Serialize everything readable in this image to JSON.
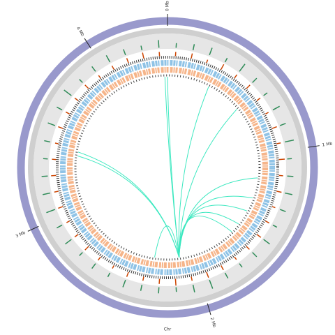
{
  "chart_data": {
    "type": "circos",
    "xlabel": "Chr",
    "xlim": [
      0,
      4.4
    ],
    "xticks": [
      {
        "value": 0,
        "label": "0 Mb"
      },
      {
        "value": 1,
        "label": "1 Mb"
      },
      {
        "value": 2,
        "label": "2 Mb"
      },
      {
        "value": 3,
        "label": "3 Mb"
      },
      {
        "value": 4,
        "label": "4 Mb"
      }
    ],
    "ylim": [
      0,
      10
    ],
    "series": [
      {
        "color": "#2e8b57",
        "values": [
          3,
          4,
          5,
          3,
          6,
          4,
          3,
          5,
          4,
          6,
          3,
          4,
          5,
          4,
          3,
          5,
          4,
          3,
          4,
          6,
          5,
          3,
          4,
          4,
          5,
          3,
          4,
          3,
          5,
          4,
          6,
          5,
          4,
          3,
          4,
          5,
          4,
          6,
          3,
          4,
          5,
          4,
          3,
          5
        ]
      },
      {
        "color": "#cc4400",
        "values": [
          5,
          6,
          4,
          7,
          5,
          6,
          5,
          4,
          6,
          5,
          7,
          5,
          6,
          4,
          5,
          6,
          5,
          4,
          6,
          7,
          5,
          8,
          6,
          5,
          6,
          4,
          5,
          6,
          5,
          4,
          6,
          5,
          6,
          5,
          4,
          6,
          5,
          5,
          6,
          4,
          5,
          6,
          7,
          5
        ]
      }
    ],
    "links": {
      "color": "#3de8c0",
      "values": [
        [
          2.11,
          4.38
        ],
        [
          2.11,
          4.4
        ],
        [
          2.11,
          0.33
        ],
        [
          2.11,
          0.61
        ],
        [
          2.11,
          1.18
        ],
        [
          2.11,
          1.34
        ],
        [
          2.11,
          1.57
        ],
        [
          2.11,
          1.65
        ],
        [
          2.11,
          3.42
        ],
        [
          2.11,
          3.39
        ],
        [
          2.11,
          2.3
        ],
        [
          2.11,
          1.45
        ]
      ]
    }
  }
}
